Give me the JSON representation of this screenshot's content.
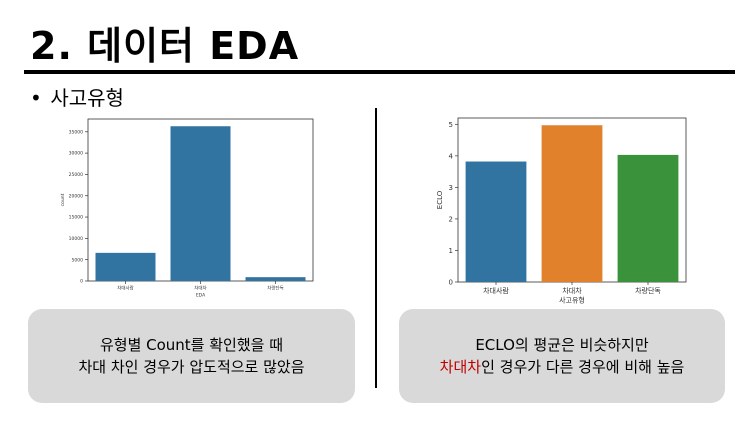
{
  "slide": {
    "title": "2. 데이터 EDA",
    "bullet_symbol": "•",
    "bullet_text": "사고유형"
  },
  "callouts": {
    "left_line1": "유형별 Count를 확인했을 때",
    "left_line2": "차대 차인 경우가 압도적으로 많았음",
    "right_line1": "ECLO의 평균은 비슷하지만",
    "right_highlight": "차대차",
    "right_line2_rest": "인 경우가 다른 경우에 비해 높음"
  },
  "chart_data": [
    {
      "type": "bar",
      "categories": [
        "차대사람",
        "차대차",
        "차량단독"
      ],
      "values": [
        6600,
        36300,
        900
      ],
      "xlabel": "EDA",
      "ylabel": "count",
      "ylim": [
        0,
        38000
      ],
      "yticks": [
        0,
        5000,
        10000,
        15000,
        20000,
        25000,
        30000,
        35000
      ],
      "colors": [
        "#3274a1",
        "#3274a1",
        "#3274a1"
      ],
      "grid": false
    },
    {
      "type": "bar",
      "categories": [
        "차대사람",
        "차대차",
        "차량단독"
      ],
      "values": [
        3.82,
        4.97,
        4.03
      ],
      "xlabel": "사고유형",
      "ylabel": "ECLO",
      "ylim": [
        0,
        5.2
      ],
      "yticks": [
        0,
        1,
        2,
        3,
        4,
        5
      ],
      "colors": [
        "#3274a1",
        "#e1812c",
        "#3a923a"
      ],
      "grid": false
    }
  ]
}
